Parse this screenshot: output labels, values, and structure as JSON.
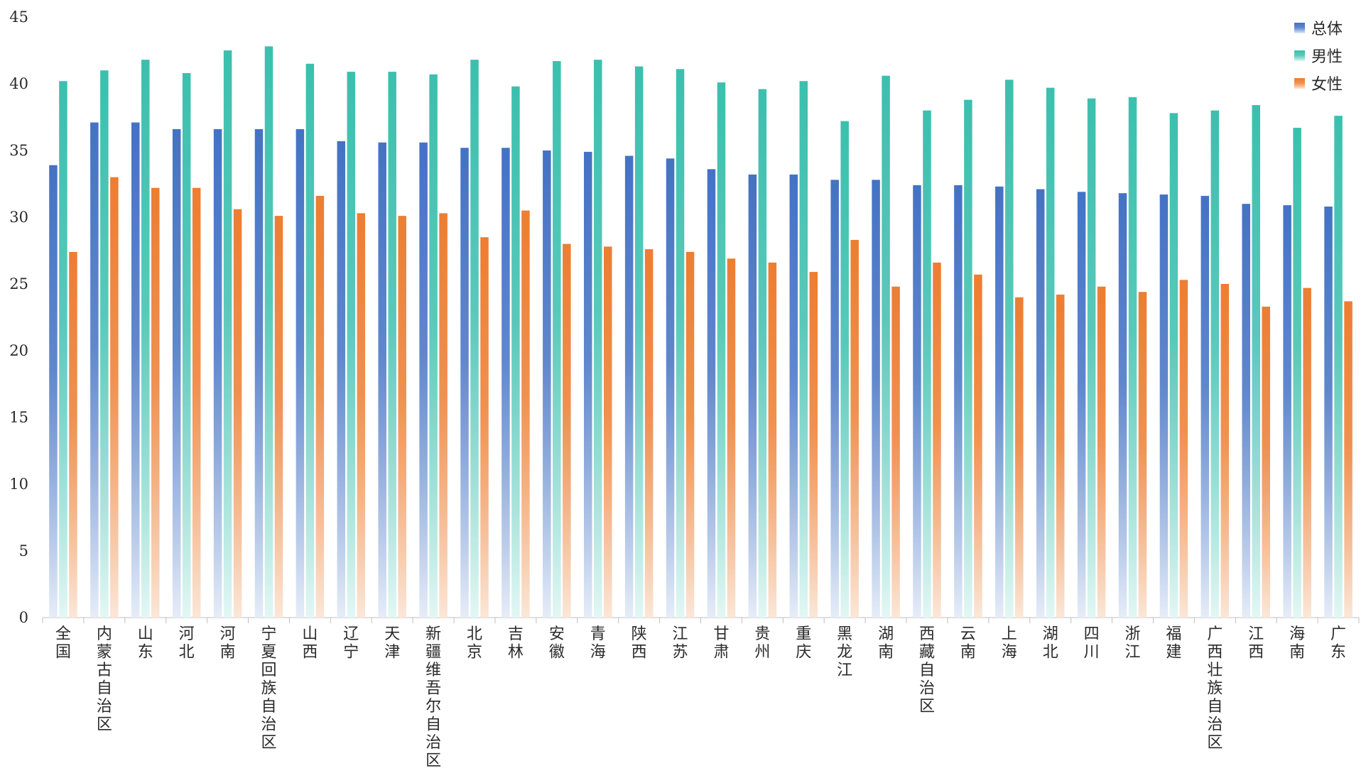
{
  "chart_data": {
    "type": "bar",
    "categories": [
      "全国",
      "内蒙古自治区",
      "山东",
      "河北",
      "河南",
      "宁夏回族自治区",
      "山西",
      "辽宁",
      "天津",
      "新疆维吾尔自治区",
      "北京",
      "吉林",
      "安徽",
      "青海",
      "陕西",
      "江苏",
      "甘肃",
      "贵州",
      "重庆",
      "黑龙江",
      "湖南",
      "西藏自治区",
      "云南",
      "上海",
      "湖北",
      "四川",
      "浙江",
      "福建",
      "广西壮族自治区",
      "江西",
      "海南",
      "广东"
    ],
    "series": [
      {
        "name": "总体",
        "color": "#4472C4",
        "values": [
          33.9,
          37.1,
          37.1,
          36.6,
          36.6,
          36.6,
          36.6,
          35.7,
          35.6,
          35.6,
          35.2,
          35.2,
          35.0,
          34.9,
          34.6,
          34.4,
          33.6,
          33.2,
          33.2,
          32.8,
          32.8,
          32.4,
          32.4,
          32.3,
          32.1,
          31.9,
          31.8,
          31.7,
          31.6,
          31.0,
          30.9,
          30.8
        ]
      },
      {
        "name": "男性",
        "color": "#3CBFAE",
        "values": [
          40.2,
          41.0,
          41.8,
          40.8,
          42.5,
          42.8,
          41.5,
          40.9,
          40.9,
          40.7,
          41.8,
          39.8,
          41.7,
          41.8,
          41.3,
          41.1,
          40.1,
          39.6,
          40.2,
          37.2,
          40.6,
          38.0,
          38.8,
          40.3,
          39.7,
          38.9,
          39.0,
          37.8,
          38.0,
          38.4,
          36.7,
          37.6
        ]
      },
      {
        "name": "女性",
        "color": "#ED7D31",
        "values": [
          27.4,
          33.0,
          32.2,
          32.2,
          30.6,
          30.1,
          31.6,
          30.3,
          30.1,
          30.3,
          28.5,
          30.5,
          28.0,
          27.8,
          27.6,
          27.4,
          26.9,
          26.6,
          25.9,
          28.3,
          24.8,
          26.6,
          25.7,
          24.0,
          24.2,
          24.8,
          24.4,
          25.3,
          25.0,
          23.3,
          24.7,
          23.7
        ]
      }
    ],
    "ylim": [
      0,
      45
    ],
    "yticks": [
      0,
      5,
      10,
      15,
      20,
      25,
      30,
      35,
      40,
      45
    ],
    "legend_position": "top-right",
    "grid": false
  }
}
